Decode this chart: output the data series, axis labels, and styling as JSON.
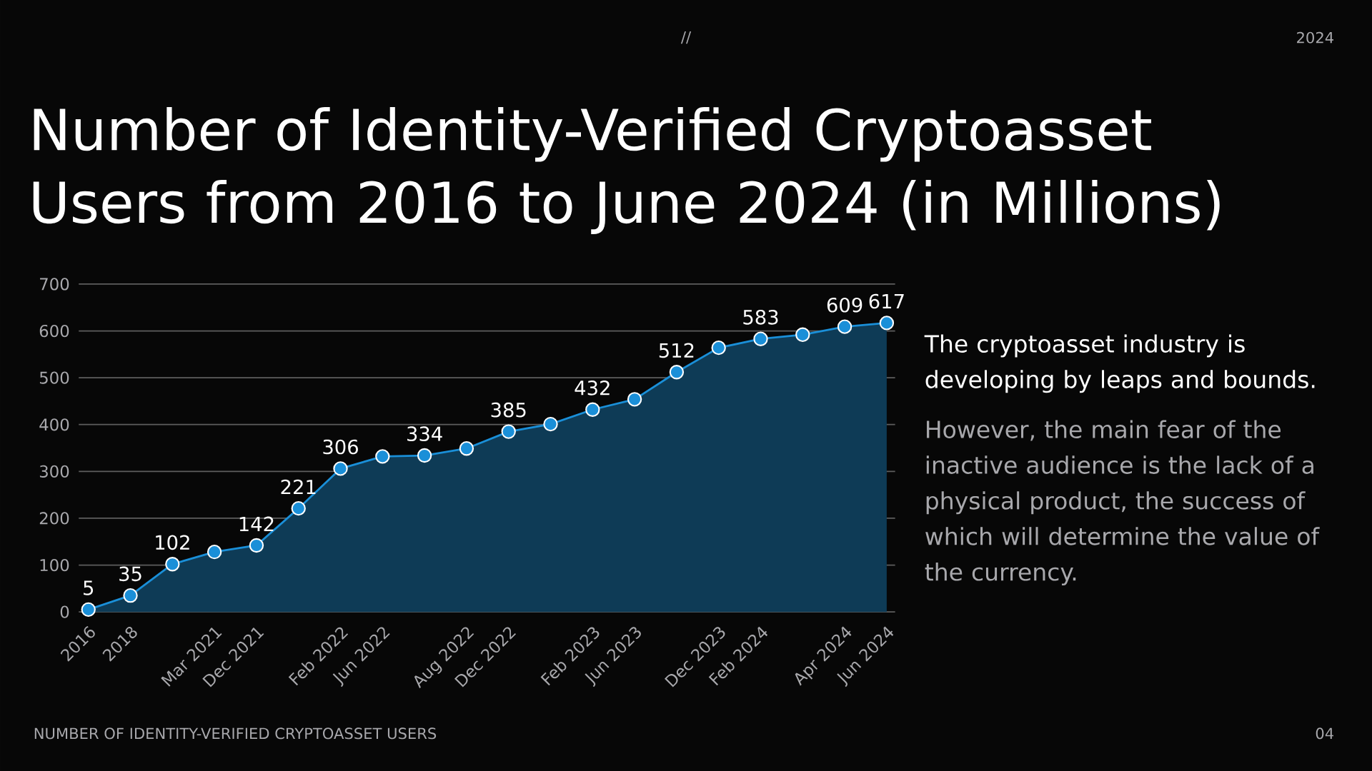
{
  "chart_data": {
    "type": "area",
    "title": "Number of Identity-Verified Cryptoasset Users from 2016 to June 2024 (in Millions)",
    "categories": [
      "2016",
      "2018",
      null,
      "Mar 2021",
      "Dec 2021",
      null,
      "Feb 2022",
      "Jun 2022",
      null,
      "Aug 2022",
      "Dec 2022",
      null,
      "Feb 2023",
      "Jun 2023",
      null,
      "Dec 2023",
      "Feb 2024",
      null,
      "Apr 2024",
      "Jun 2024"
    ],
    "series": [
      {
        "color": "#1a8fd8",
        "values": [
          5,
          35,
          102,
          128,
          142,
          221,
          306,
          332,
          334,
          349,
          385,
          401,
          432,
          454,
          512,
          564,
          583,
          592,
          609,
          617
        ],
        "value_labels": [
          "5",
          "35",
          "102",
          null,
          "142",
          "221",
          "306",
          null,
          "334",
          null,
          "385",
          null,
          "432",
          null,
          "512",
          null,
          "583",
          null,
          "609",
          "617"
        ]
      }
    ],
    "ylim": [
      0,
      700
    ],
    "yticks": [
      0,
      100,
      200,
      300,
      400,
      500,
      600,
      700
    ],
    "grid": "y",
    "marker": "circle",
    "annotations": [
      "//",
      "2024",
      "The cryptoasset industry is developing by leaps and bounds.",
      "However, the main fear of the inactive audience is the lack of a physical product, the success of which will determine the value of the currency.",
      "NUMBER OF IDENTITY-VERIFIED CRYPTOASSET USERS",
      "04"
    ]
  }
}
